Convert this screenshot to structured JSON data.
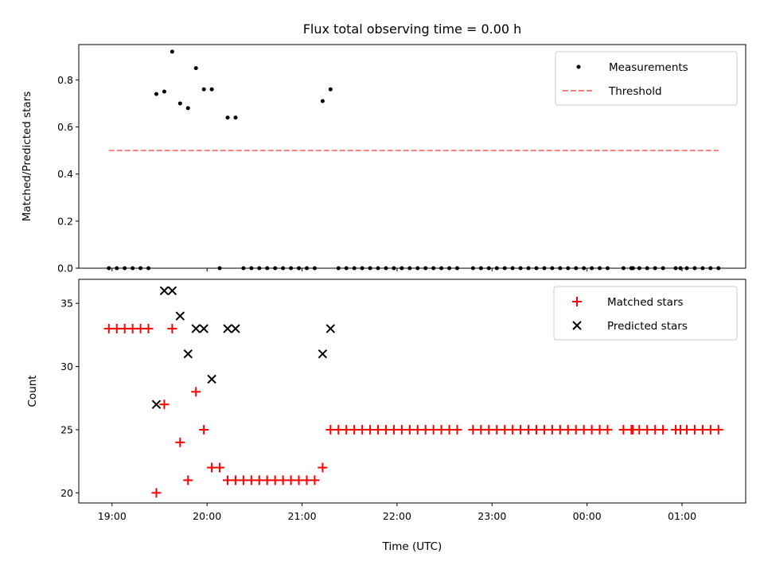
{
  "chart_data": {
    "title": "Flux total observing time = 0.00 h",
    "xlabel": "Time (UTC)",
    "x_ticks": [
      "19:00",
      "20:00",
      "21:00",
      "22:00",
      "23:00",
      "00:00",
      "01:00"
    ],
    "x_tick_hours": [
      19,
      20,
      21,
      22,
      23,
      24,
      25
    ],
    "xlim_hours": [
      18.65,
      25.67
    ],
    "panels": [
      {
        "type": "scatter",
        "ylabel": "Matched/Predicted stars",
        "ylim": [
          0,
          0.95
        ],
        "yticks": [
          0.0,
          0.2,
          0.4,
          0.6,
          0.8
        ],
        "ytick_labels": [
          "0.0",
          "0.2",
          "0.4",
          "0.6",
          "0.8"
        ],
        "legend_position": "top-right",
        "series": [
          {
            "name": "Measurements",
            "marker": "dot",
            "color": "#000000",
            "points": [
              [
                "18:58",
                0
              ],
              [
                "19:03",
                0
              ],
              [
                "19:08",
                0
              ],
              [
                "19:13",
                0
              ],
              [
                "19:18",
                0
              ],
              [
                "19:23",
                0
              ],
              [
                "19:28",
                0.74
              ],
              [
                "19:33",
                0.75
              ],
              [
                "19:38",
                0.92
              ],
              [
                "19:43",
                0.7
              ],
              [
                "19:48",
                0.68
              ],
              [
                "19:53",
                0.85
              ],
              [
                "19:58",
                0.76
              ],
              [
                "20:03",
                0.76
              ],
              [
                "20:08",
                0
              ],
              [
                "20:13",
                0.64
              ],
              [
                "20:18",
                0.64
              ],
              [
                "20:23",
                0
              ],
              [
                "20:28",
                0
              ],
              [
                "20:33",
                0
              ],
              [
                "20:38",
                0
              ],
              [
                "20:43",
                0
              ],
              [
                "20:48",
                0
              ],
              [
                "20:53",
                0
              ],
              [
                "20:58",
                0
              ],
              [
                "21:03",
                0
              ],
              [
                "21:08",
                0
              ],
              [
                "21:13",
                0.71
              ],
              [
                "21:18",
                0.76
              ],
              [
                "21:23",
                0
              ],
              [
                "21:28",
                0
              ],
              [
                "21:33",
                0
              ],
              [
                "21:38",
                0
              ],
              [
                "21:43",
                0
              ],
              [
                "21:48",
                0
              ],
              [
                "21:53",
                0
              ],
              [
                "21:58",
                0
              ],
              [
                "22:03",
                0
              ],
              [
                "22:08",
                0
              ],
              [
                "22:13",
                0
              ],
              [
                "22:18",
                0
              ],
              [
                "22:23",
                0
              ],
              [
                "22:28",
                0
              ],
              [
                "22:33",
                0
              ],
              [
                "22:38",
                0
              ],
              [
                "22:48",
                0
              ],
              [
                "22:53",
                0
              ],
              [
                "22:58",
                0
              ],
              [
                "23:03",
                0
              ],
              [
                "23:08",
                0
              ],
              [
                "23:13",
                0
              ],
              [
                "23:18",
                0
              ],
              [
                "23:23",
                0
              ],
              [
                "23:28",
                0
              ],
              [
                "23:33",
                0
              ],
              [
                "23:38",
                0
              ],
              [
                "23:43",
                0
              ],
              [
                "23:48",
                0
              ],
              [
                "23:53",
                0
              ],
              [
                "23:58",
                0
              ],
              [
                "00:03",
                0
              ],
              [
                "00:08",
                0
              ],
              [
                "00:13",
                0
              ],
              [
                "00:23",
                0
              ],
              [
                "00:28",
                0
              ],
              [
                "00:29",
                0
              ],
              [
                "00:33",
                0
              ],
              [
                "00:38",
                0
              ],
              [
                "00:43",
                0
              ],
              [
                "00:48",
                0
              ],
              [
                "00:56",
                0
              ],
              [
                "00:59",
                0
              ],
              [
                "01:03",
                0
              ],
              [
                "01:08",
                0
              ],
              [
                "01:13",
                0
              ],
              [
                "01:18",
                0
              ],
              [
                "01:23",
                0
              ]
            ]
          },
          {
            "name": "Threshold",
            "marker": "dashed-line",
            "color": "#ff7f7f",
            "points": [
              [
                "18:58",
                0.5
              ],
              [
                "01:23",
                0.5
              ]
            ]
          }
        ]
      },
      {
        "type": "scatter",
        "ylabel": "Count",
        "ylim": [
          19.2,
          36.9
        ],
        "yticks": [
          20,
          25,
          30,
          35
        ],
        "ytick_labels": [
          "20",
          "25",
          "30",
          "35"
        ],
        "legend_position": "top-right",
        "series": [
          {
            "name": "Matched stars",
            "marker": "plus",
            "color": "#ff0000",
            "points": [
              [
                "18:58",
                33
              ],
              [
                "19:03",
                33
              ],
              [
                "19:08",
                33
              ],
              [
                "19:13",
                33
              ],
              [
                "19:18",
                33
              ],
              [
                "19:23",
                33
              ],
              [
                "19:28",
                20
              ],
              [
                "19:33",
                27
              ],
              [
                "19:38",
                33
              ],
              [
                "19:43",
                24
              ],
              [
                "19:48",
                21
              ],
              [
                "19:53",
                28
              ],
              [
                "19:58",
                25
              ],
              [
                "20:03",
                22
              ],
              [
                "20:08",
                22
              ],
              [
                "20:13",
                21
              ],
              [
                "20:18",
                21
              ],
              [
                "20:23",
                21
              ],
              [
                "20:28",
                21
              ],
              [
                "20:33",
                21
              ],
              [
                "20:38",
                21
              ],
              [
                "20:43",
                21
              ],
              [
                "20:48",
                21
              ],
              [
                "20:53",
                21
              ],
              [
                "20:58",
                21
              ],
              [
                "21:03",
                21
              ],
              [
                "21:08",
                21
              ],
              [
                "21:13",
                22
              ],
              [
                "21:18",
                25
              ],
              [
                "21:23",
                25
              ],
              [
                "21:28",
                25
              ],
              [
                "21:33",
                25
              ],
              [
                "21:38",
                25
              ],
              [
                "21:43",
                25
              ],
              [
                "21:48",
                25
              ],
              [
                "21:53",
                25
              ],
              [
                "21:58",
                25
              ],
              [
                "22:03",
                25
              ],
              [
                "22:08",
                25
              ],
              [
                "22:13",
                25
              ],
              [
                "22:18",
                25
              ],
              [
                "22:23",
                25
              ],
              [
                "22:28",
                25
              ],
              [
                "22:33",
                25
              ],
              [
                "22:38",
                25
              ],
              [
                "22:48",
                25
              ],
              [
                "22:53",
                25
              ],
              [
                "22:58",
                25
              ],
              [
                "23:03",
                25
              ],
              [
                "23:08",
                25
              ],
              [
                "23:13",
                25
              ],
              [
                "23:18",
                25
              ],
              [
                "23:23",
                25
              ],
              [
                "23:28",
                25
              ],
              [
                "23:33",
                25
              ],
              [
                "23:38",
                25
              ],
              [
                "23:43",
                25
              ],
              [
                "23:48",
                25
              ],
              [
                "23:53",
                25
              ],
              [
                "23:58",
                25
              ],
              [
                "00:03",
                25
              ],
              [
                "00:08",
                25
              ],
              [
                "00:13",
                25
              ],
              [
                "00:23",
                25
              ],
              [
                "00:28",
                25
              ],
              [
                "00:29",
                25
              ],
              [
                "00:33",
                25
              ],
              [
                "00:38",
                25
              ],
              [
                "00:43",
                25
              ],
              [
                "00:48",
                25
              ],
              [
                "00:56",
                25
              ],
              [
                "00:59",
                25
              ],
              [
                "01:03",
                25
              ],
              [
                "01:08",
                25
              ],
              [
                "01:13",
                25
              ],
              [
                "01:18",
                25
              ],
              [
                "01:23",
                25
              ]
            ]
          },
          {
            "name": "Predicted stars",
            "marker": "x",
            "color": "#000000",
            "points": [
              [
                "19:28",
                27
              ],
              [
                "19:33",
                36
              ],
              [
                "19:38",
                36
              ],
              [
                "19:43",
                34
              ],
              [
                "19:48",
                31
              ],
              [
                "19:53",
                33
              ],
              [
                "19:58",
                33
              ],
              [
                "20:03",
                29
              ],
              [
                "20:13",
                33
              ],
              [
                "20:18",
                33
              ],
              [
                "21:13",
                31
              ],
              [
                "21:18",
                33
              ]
            ]
          }
        ]
      }
    ]
  }
}
